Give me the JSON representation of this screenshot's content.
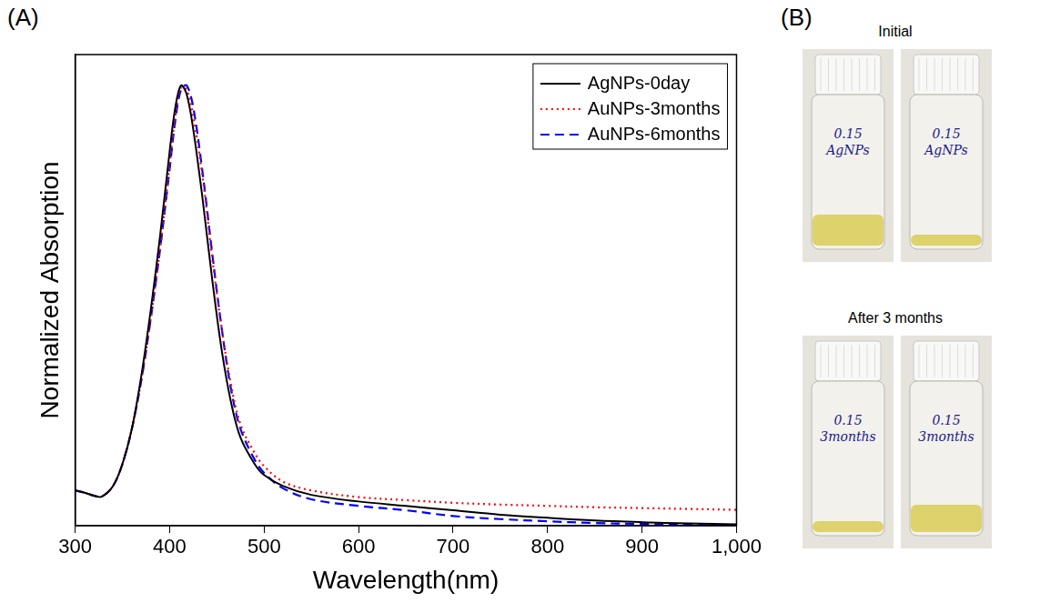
{
  "panel_letters": [
    "(A)",
    "(B)"
  ],
  "chart_data": {
    "type": "line",
    "x_label": "Wavelength(nm)",
    "y_label": "Normalized Absorption",
    "x": [
      300,
      310,
      320,
      328,
      340,
      350,
      360,
      370,
      380,
      390,
      400,
      406,
      412,
      418,
      425,
      435,
      445,
      455,
      465,
      475,
      490,
      500,
      520,
      550,
      600,
      650,
      700,
      750,
      800,
      850,
      900,
      950,
      1000
    ],
    "series": [
      {
        "name": "AgNPs-0day",
        "color": "#000000",
        "line_style": "solid",
        "values": [
          0.08,
          0.075,
          0.068,
          0.066,
          0.09,
          0.14,
          0.22,
          0.34,
          0.49,
          0.66,
          0.85,
          0.95,
          1.0,
          0.98,
          0.9,
          0.74,
          0.56,
          0.4,
          0.28,
          0.2,
          0.14,
          0.115,
          0.09,
          0.07,
          0.055,
          0.045,
          0.035,
          0.025,
          0.018,
          0.012,
          0.008,
          0.005,
          0.003
        ]
      },
      {
        "name": "AuNPs-3months",
        "color": "#ff0000",
        "line_style": "dotted",
        "values": [
          0.08,
          0.075,
          0.068,
          0.066,
          0.09,
          0.14,
          0.22,
          0.33,
          0.47,
          0.63,
          0.82,
          0.93,
          0.995,
          0.99,
          0.93,
          0.79,
          0.61,
          0.45,
          0.32,
          0.23,
          0.165,
          0.135,
          0.1,
          0.08,
          0.065,
          0.058,
          0.052,
          0.048,
          0.045,
          0.042,
          0.04,
          0.038,
          0.036
        ]
      },
      {
        "name": "AuNPs-6months",
        "color": "#0000ff",
        "line_style": "dashed",
        "values": [
          0.08,
          0.075,
          0.068,
          0.066,
          0.09,
          0.14,
          0.22,
          0.33,
          0.47,
          0.63,
          0.81,
          0.92,
          0.99,
          1.0,
          0.95,
          0.8,
          0.62,
          0.45,
          0.31,
          0.22,
          0.15,
          0.12,
          0.085,
          0.06,
          0.045,
          0.035,
          0.022,
          0.015,
          0.01,
          0.006,
          0.004,
          0.002,
          0.0
        ]
      }
    ],
    "xlim": [
      300,
      1000
    ],
    "xticks": [
      300,
      400,
      500,
      600,
      700,
      800,
      900,
      1000
    ],
    "ylim": [
      0,
      1.07
    ],
    "tick_labels": "x",
    "grid": false,
    "legend": "upper right"
  },
  "photos": [
    {
      "title": "Initial",
      "vials": [
        {
          "label": [
            "0.15",
            "AgNPs"
          ]
        },
        {
          "label": [
            "0.15",
            "AgNPs"
          ]
        }
      ]
    },
    {
      "title": "After 3 months",
      "vials": [
        {
          "label": [
            "0.15",
            "3months"
          ]
        },
        {
          "label": [
            "0.15",
            "3months"
          ]
        }
      ]
    }
  ]
}
